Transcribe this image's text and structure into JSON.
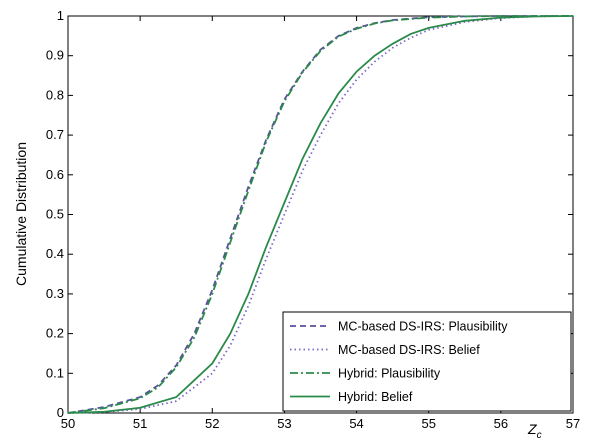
{
  "chart_data": {
    "type": "line",
    "title": "",
    "xlabel": "Z",
    "xlabel_sub": "c",
    "ylabel": "Cumulative Distribution",
    "xlim": [
      50,
      57
    ],
    "ylim": [
      0,
      1
    ],
    "xticks": [
      50,
      51,
      52,
      53,
      54,
      55,
      56,
      57
    ],
    "yticks": [
      0,
      0.1,
      0.2,
      0.3,
      0.4,
      0.5,
      0.6,
      0.7,
      0.8,
      0.9,
      1
    ],
    "grid": false,
    "legend_position": "bottom-right",
    "series": [
      {
        "name": "MC-based DS-IRS: Plausibility",
        "color": "#5b4fa0",
        "dash": "dashed",
        "x": [
          50,
          50.5,
          51,
          51.25,
          51.5,
          51.75,
          52,
          52.25,
          52.5,
          52.75,
          53,
          53.25,
          53.5,
          53.75,
          54,
          54.25,
          54.5,
          55,
          55.5,
          56,
          56.5,
          57
        ],
        "y": [
          0,
          0.015,
          0.04,
          0.07,
          0.12,
          0.2,
          0.31,
          0.44,
          0.57,
          0.69,
          0.79,
          0.86,
          0.915,
          0.95,
          0.97,
          0.982,
          0.99,
          0.997,
          0.999,
          1,
          1,
          1
        ]
      },
      {
        "name": "MC-based DS-IRS: Belief",
        "color": "#7b68c8",
        "dash": "dotted",
        "x": [
          50,
          50.5,
          51,
          51.5,
          52,
          52.25,
          52.5,
          52.75,
          53,
          53.25,
          53.5,
          53.75,
          54,
          54.25,
          54.5,
          54.75,
          55,
          55.5,
          56,
          56.5,
          57
        ],
        "y": [
          0,
          0.002,
          0.01,
          0.03,
          0.1,
          0.17,
          0.27,
          0.39,
          0.5,
          0.61,
          0.7,
          0.78,
          0.84,
          0.885,
          0.92,
          0.945,
          0.965,
          0.985,
          0.995,
          0.999,
          1
        ]
      },
      {
        "name": "Hybrid: Plausibility",
        "color": "#2a8a4a",
        "dash": "dashdot",
        "x": [
          50,
          50.5,
          51,
          51.25,
          51.5,
          51.75,
          52,
          52.25,
          52.5,
          52.75,
          53,
          53.25,
          53.5,
          53.75,
          54,
          54.25,
          54.5,
          55,
          55.5,
          56,
          56.5,
          57
        ],
        "y": [
          0,
          0.012,
          0.037,
          0.065,
          0.115,
          0.19,
          0.3,
          0.43,
          0.56,
          0.685,
          0.785,
          0.858,
          0.912,
          0.948,
          0.968,
          0.981,
          0.989,
          0.996,
          0.999,
          1,
          1,
          1
        ]
      },
      {
        "name": "Hybrid: Belief",
        "color": "#2a8a4a",
        "dash": "solid",
        "x": [
          50,
          50.5,
          51,
          51.5,
          52,
          52.25,
          52.5,
          52.75,
          53,
          53.25,
          53.5,
          53.75,
          54,
          54.25,
          54.5,
          54.75,
          55,
          55.5,
          56,
          56.5,
          57
        ],
        "y": [
          0,
          0.003,
          0.013,
          0.04,
          0.125,
          0.2,
          0.3,
          0.42,
          0.53,
          0.64,
          0.73,
          0.805,
          0.86,
          0.9,
          0.93,
          0.955,
          0.97,
          0.988,
          0.996,
          0.999,
          1
        ]
      }
    ]
  }
}
